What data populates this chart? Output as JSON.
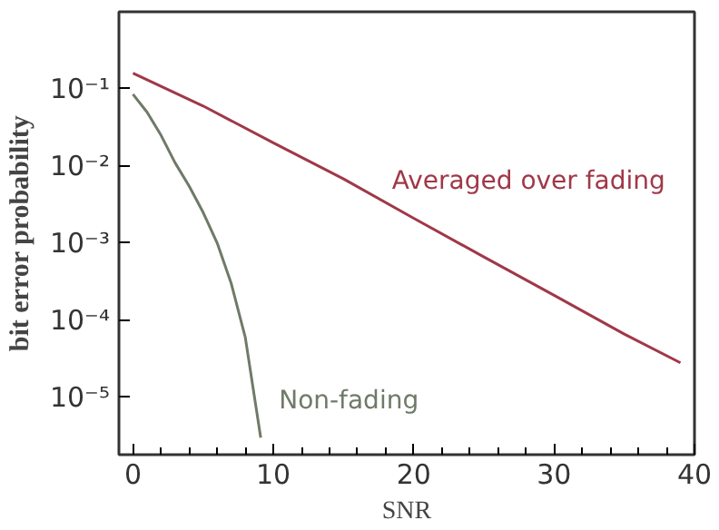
{
  "chart_data": {
    "type": "line",
    "xlabel": "SNR",
    "ylabel": "bit error probability",
    "log": "y",
    "grid": false,
    "legend": false,
    "marker": "none",
    "line_style": "solid",
    "xlim": [
      -1,
      40
    ],
    "xticks": [
      0,
      10,
      20,
      30,
      40
    ],
    "ylim": [
      1.8e-06,
      1
    ],
    "yticks": [
      {
        "value": 0.1,
        "label": "10⁻¹"
      },
      {
        "value": 0.01,
        "label": "10⁻²"
      },
      {
        "value": 0.001,
        "label": "10⁻³"
      },
      {
        "value": 0.0001,
        "label": "10⁻⁴"
      },
      {
        "value": 1e-05,
        "label": "10⁻⁵"
      }
    ],
    "series": [
      {
        "name": "Averaged over fading",
        "color": "#a03848",
        "x": [
          0,
          5,
          10,
          15,
          20,
          25,
          30,
          35,
          39
        ],
        "values": [
          0.16,
          0.06,
          0.02,
          0.0068,
          0.0021,
          0.00066,
          0.00021,
          6.6e-05,
          2.8e-05
        ]
      },
      {
        "name": "Non-fading",
        "color": "#6f7a68",
        "x": [
          0,
          1,
          2,
          3,
          4,
          5,
          6,
          7,
          8,
          9.1
        ],
        "values": [
          0.085,
          0.05,
          0.025,
          0.011,
          0.0055,
          0.0025,
          0.001,
          0.0003,
          6e-05,
          3e-06
        ]
      }
    ]
  }
}
